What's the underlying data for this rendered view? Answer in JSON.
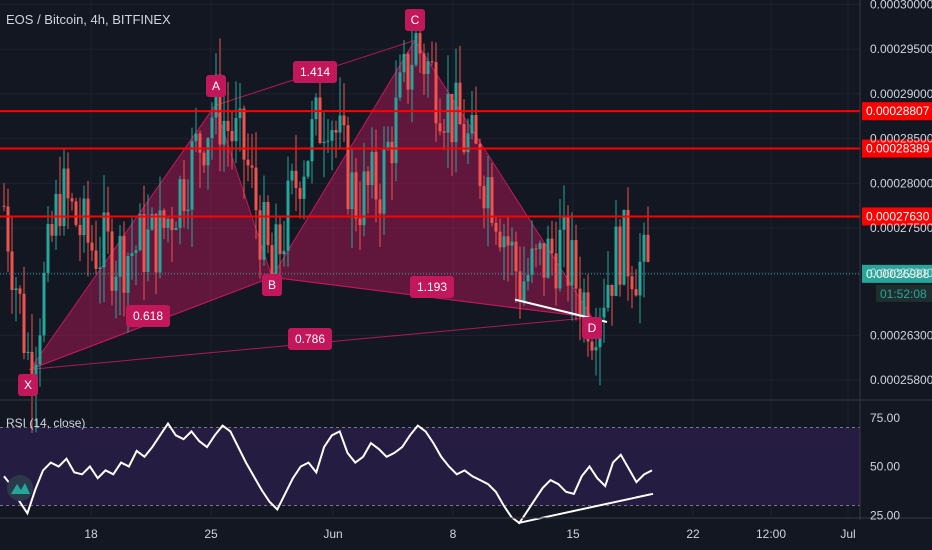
{
  "header": {
    "symbol_title": "EOS / Bitcoin, 4h, BITFINEX"
  },
  "rsi_panel": {
    "label": "RSI (14, close)"
  },
  "colors": {
    "background": "#131722",
    "up": "#26a69a",
    "down": "#ef5350",
    "pattern": "#c2185b",
    "horizontal_line": "#ff0000",
    "rsi_band": "#2a1f4a",
    "last_price": "#26a69a"
  },
  "chart_data": [
    {
      "type": "candlestick",
      "title": "EOS / Bitcoin, 4h, BITFINEX",
      "price_axis": {
        "ticks": [
          "0.00030000",
          "0.00029500",
          "0.00029000",
          "0.00028500",
          "0.00028000",
          "0.00027500",
          "0.00027000",
          "0.00026300",
          "0.00025800"
        ],
        "range": [
          0.000256,
          0.0003005
        ]
      },
      "time_axis": {
        "ticks": [
          "18",
          "25",
          "Jun",
          "8",
          "15",
          "22",
          "12:00",
          "Jul"
        ]
      },
      "horizontal_lines": [
        {
          "label": "0.00028807",
          "value": 0.00028807
        },
        {
          "label": "0.00028389",
          "value": 0.00028389
        },
        {
          "label": "0.00027630",
          "value": 0.0002763
        }
      ],
      "last_price": {
        "label": "0.00026988",
        "value": 0.00026988,
        "countdown": "01:52:08"
      },
      "pattern": {
        "points": [
          {
            "name": "X",
            "value": 0.0002592
          },
          {
            "name": "A",
            "value": 0.0002887
          },
          {
            "name": "B",
            "value": 0.0002695
          },
          {
            "name": "C",
            "value": 0.000296
          },
          {
            "name": "D",
            "value": 0.000265
          }
        ],
        "ratios": [
          {
            "label": "0.618",
            "between": "XA-AB"
          },
          {
            "label": "1.414",
            "between": "AB-BC"
          },
          {
            "label": "1.193",
            "between": "BC-CD"
          },
          {
            "label": "0.786",
            "between": "XA-XD"
          }
        ]
      }
    },
    {
      "type": "line",
      "title": "RSI (14, close)",
      "y_axis": {
        "ticks": [
          "75.00",
          "50.00",
          "25.00"
        ],
        "range": [
          20,
          80
        ]
      },
      "bands": [
        70,
        30
      ],
      "series": [
        {
          "values": [
            45,
            40,
            32,
            26,
            38,
            48,
            52,
            50,
            54,
            47,
            46,
            50,
            44,
            48,
            46,
            52,
            50,
            58,
            55,
            60,
            66,
            72,
            66,
            64,
            68,
            63,
            60,
            66,
            71,
            68,
            60,
            52,
            45,
            38,
            32,
            28,
            36,
            44,
            50,
            52,
            47,
            60,
            66,
            68,
            57,
            52,
            55,
            62,
            59,
            55,
            57,
            60,
            66,
            71,
            68,
            62,
            55,
            50,
            46,
            48,
            45,
            43,
            41,
            37,
            30,
            24,
            21,
            27,
            33,
            39,
            43,
            41,
            37,
            36,
            45,
            50,
            44,
            40,
            52,
            56,
            49,
            42,
            46,
            48
          ]
        }
      ]
    }
  ]
}
